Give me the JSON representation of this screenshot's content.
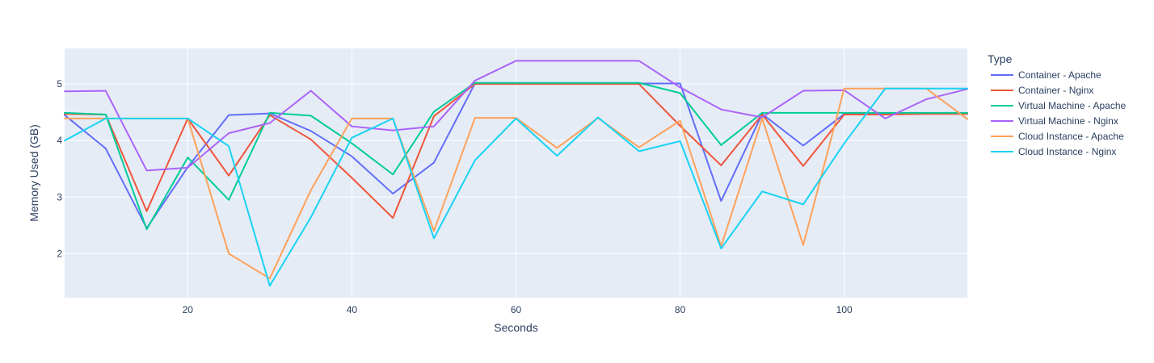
{
  "chart_data": {
    "type": "line",
    "title": "",
    "xlabel": "Seconds",
    "ylabel": "Memory Used (GB)",
    "xlim": [
      5,
      115
    ],
    "ylim": [
      1.22,
      5.63
    ],
    "xticks": [
      20,
      40,
      60,
      80,
      100
    ],
    "yticks": [
      2,
      3,
      4,
      5
    ],
    "grid": true,
    "legend_title": "Type",
    "legend_position": "right",
    "x": [
      5,
      10,
      15,
      20,
      25,
      30,
      35,
      40,
      45,
      50,
      55,
      60,
      65,
      70,
      75,
      80,
      85,
      90,
      95,
      100,
      105,
      110,
      115
    ],
    "series": [
      {
        "name": "Container - Apache",
        "color": "#636efa",
        "values": [
          4.45,
          3.86,
          2.45,
          3.53,
          4.45,
          4.48,
          4.17,
          3.72,
          3.06,
          3.61,
          5.01,
          5.01,
          5.01,
          5.01,
          5.01,
          5.01,
          2.93,
          4.47,
          3.91,
          4.47,
          4.47,
          4.48,
          4.48
        ]
      },
      {
        "name": "Container - Nginx",
        "color": "#ef553b",
        "values": [
          4.47,
          4.46,
          2.75,
          4.39,
          3.38,
          4.45,
          4.02,
          3.34,
          2.63,
          4.43,
          5.0,
          5.0,
          5.0,
          5.0,
          5.0,
          4.26,
          3.56,
          4.46,
          3.55,
          4.46,
          4.46,
          4.47,
          4.47
        ]
      },
      {
        "name": "Virtual Machine - Apache",
        "color": "#00cc96",
        "values": [
          4.49,
          4.46,
          2.43,
          3.7,
          2.95,
          4.49,
          4.44,
          3.95,
          3.4,
          4.51,
          5.02,
          5.02,
          5.02,
          5.02,
          5.02,
          4.84,
          3.92,
          4.49,
          4.49,
          4.49,
          4.49,
          4.49,
          4.49
        ]
      },
      {
        "name": "Virtual Machine - Nginx",
        "color": "#ab63fa",
        "values": [
          4.87,
          4.88,
          3.47,
          3.52,
          4.13,
          4.31,
          4.88,
          4.25,
          4.18,
          4.25,
          5.06,
          5.41,
          5.41,
          5.41,
          5.41,
          4.94,
          4.55,
          4.41,
          4.88,
          4.89,
          4.39,
          4.73,
          4.91
        ]
      },
      {
        "name": "Cloud Instance - Apache",
        "color": "#ffa15a",
        "values": [
          4.39,
          4.39,
          4.39,
          4.39,
          2.0,
          1.56,
          3.12,
          4.39,
          4.39,
          2.4,
          4.4,
          4.4,
          3.87,
          4.4,
          3.88,
          4.35,
          2.13,
          4.39,
          2.15,
          4.92,
          4.92,
          4.92,
          4.38
        ]
      },
      {
        "name": "Cloud Instance - Nginx",
        "color": "#19d3f3",
        "values": [
          4.0,
          4.39,
          4.39,
          4.39,
          3.9,
          1.43,
          2.64,
          4.05,
          4.39,
          2.27,
          3.65,
          4.39,
          3.73,
          4.41,
          3.81,
          3.99,
          2.09,
          3.1,
          2.87,
          3.95,
          4.92,
          4.92,
          4.92
        ]
      }
    ]
  }
}
